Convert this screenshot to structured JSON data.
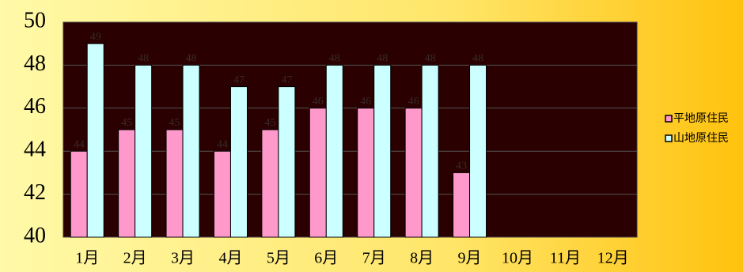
{
  "chart_data": {
    "type": "bar",
    "categories": [
      "1月",
      "2月",
      "3月",
      "4月",
      "5月",
      "6月",
      "7月",
      "8月",
      "9月",
      "10月",
      "11月",
      "12月"
    ],
    "series": [
      {
        "name": "平地原住民",
        "color": "#ff99cc",
        "values": [
          44,
          45,
          45,
          44,
          45,
          46,
          46,
          46,
          43,
          null,
          null,
          null
        ]
      },
      {
        "name": "山地原住民",
        "color": "#ccffff",
        "values": [
          49,
          48,
          48,
          47,
          47,
          48,
          48,
          48,
          48,
          null,
          null,
          null
        ]
      }
    ],
    "ylim": [
      40,
      50
    ],
    "yticks": [
      40,
      42,
      44,
      46,
      48,
      50
    ],
    "grid": true,
    "legend": "right"
  }
}
